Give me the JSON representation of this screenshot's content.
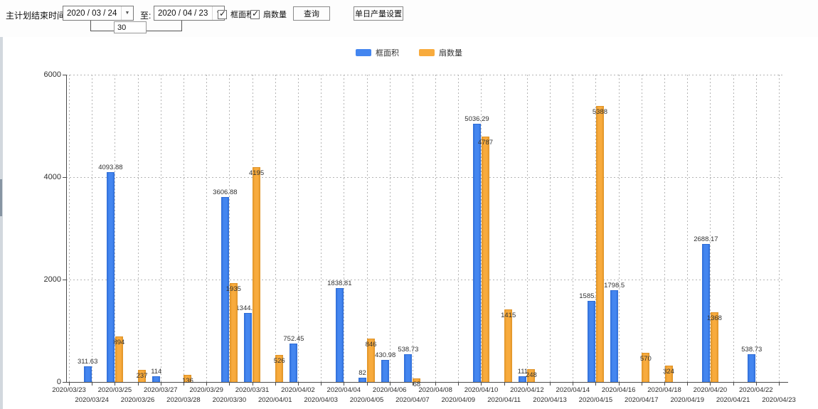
{
  "toolbar": {
    "plan_end_label": "主计划结束时间:",
    "date_from": "2020 / 03 / 24",
    "to_label": "至:",
    "date_to": "2020 / 04 / 23",
    "interval_days": "30",
    "checkbox_frame_area_label": "框面积",
    "checkbox_fan_count_label": "扇数量",
    "query_button_label": "查询",
    "daily_output_button_label": "单日产量设置",
    "dropdown_arrow": "▼",
    "checkmark": "✓"
  },
  "legend": {
    "frame_area_label": "框面积",
    "fan_count_label": "扇数量"
  },
  "colors": {
    "frame_area": "#4486f0",
    "frame_area_dark": "#2e6cd6",
    "fan_count": "#f8ab3d",
    "fan_count_dark": "#de9226",
    "axis": "#4b4b4b",
    "grid": "#b4b4b4"
  },
  "chart_data": {
    "type": "bar",
    "title": "",
    "xlabel": "",
    "ylabel": "",
    "ylim": [
      0,
      6000
    ],
    "yticks": [
      0,
      2000,
      4000,
      6000
    ],
    "grid": true,
    "legend_position": "top",
    "categories": [
      "2020/03/23",
      "2020/03/24",
      "2020/03/25",
      "2020/03/26",
      "2020/03/27",
      "2020/03/28",
      "2020/03/29",
      "2020/03/30",
      "2020/03/31",
      "2020/04/01",
      "2020/04/02",
      "2020/04/03",
      "2020/04/04",
      "2020/04/05",
      "2020/04/06",
      "2020/04/07",
      "2020/04/08",
      "2020/04/09",
      "2020/04/10",
      "2020/04/11",
      "2020/04/12",
      "2020/04/13",
      "2020/04/14",
      "2020/04/15",
      "2020/04/16",
      "2020/04/17",
      "2020/04/18",
      "2020/04/19",
      "2020/04/20",
      "2020/04/21",
      "2020/04/22",
      "2020/04/23"
    ],
    "series": [
      {
        "name": "框面积",
        "color": "#4486f0",
        "values": [
          null,
          311.63,
          4093.88,
          null,
          114,
          null,
          null,
          3606.88,
          1344.95,
          null,
          752.45,
          null,
          1838.81,
          82,
          430.98,
          538.73,
          null,
          null,
          5036.29,
          null,
          111,
          null,
          null,
          1585.96,
          1798.5,
          null,
          null,
          null,
          2688.17,
          null,
          538.73,
          null
        ]
      },
      {
        "name": "扇数量",
        "color": "#f8ab3d",
        "values": [
          null,
          null,
          894,
          237,
          null,
          136,
          null,
          1935,
          4195,
          526,
          null,
          null,
          null,
          846,
          null,
          68,
          null,
          null,
          4787,
          1415,
          248,
          null,
          null,
          5388,
          null,
          570,
          324,
          null,
          1368,
          null,
          null,
          null
        ]
      }
    ]
  }
}
